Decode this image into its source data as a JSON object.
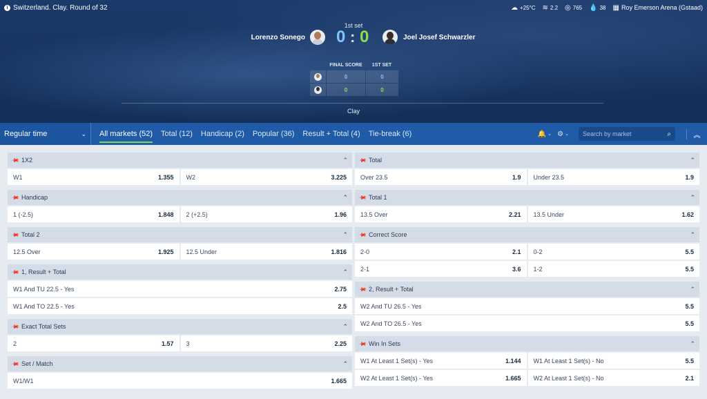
{
  "header": {
    "tournament": "Switzerland. Clay. Round of 32",
    "weather": {
      "temp": "+25°C",
      "wind": "2.2",
      "pressure": "765",
      "humidity": "38"
    },
    "arena": "Roy Emerson Arena (Gstaad)"
  },
  "match": {
    "set_label": "1st set",
    "player1": "Lorenzo Sonego",
    "player2": "Joel Josef Schwarzler",
    "score1": "0",
    "score_sep": ":",
    "score2": "0",
    "table_headers": [
      "FINAL SCORE",
      "1ST SET"
    ],
    "table_rows": [
      {
        "final": "0",
        "set1": "0"
      },
      {
        "final": "0",
        "set1": "0"
      }
    ],
    "surface": "Clay"
  },
  "nav": {
    "period": "Regular time",
    "tabs": [
      "All markets (52)",
      "Total (12)",
      "Handicap (2)",
      "Popular (36)",
      "Result + Total (4)",
      "Tie-break (6)"
    ],
    "search_placeholder": "Search by market"
  },
  "markets_left": [
    {
      "title": "1X2",
      "rows": [
        [
          [
            "W1",
            "1.355"
          ],
          [
            "W2",
            "3.225"
          ]
        ]
      ]
    },
    {
      "title": "Handicap",
      "rows": [
        [
          [
            "1 (-2.5)",
            "1.848"
          ],
          [
            "2 (+2.5)",
            "1.96"
          ]
        ]
      ]
    },
    {
      "title": "Total 2",
      "rows": [
        [
          [
            "12.5 Over",
            "1.925"
          ],
          [
            "12.5 Under",
            "1.816"
          ]
        ]
      ]
    },
    {
      "title": "1, Result + Total",
      "rows": [
        [
          [
            "W1 And TU 22.5 - Yes",
            "2.75"
          ]
        ],
        [
          [
            "W1 And TO 22.5 - Yes",
            "2.5"
          ]
        ]
      ]
    },
    {
      "title": "Exact Total Sets",
      "rows": [
        [
          [
            "2",
            "1.57"
          ],
          [
            "3",
            "2.25"
          ]
        ]
      ]
    },
    {
      "title": "Set / Match",
      "rows": [
        [
          [
            "W1/W1",
            "1.665"
          ]
        ]
      ]
    }
  ],
  "markets_right": [
    {
      "title": "Total",
      "rows": [
        [
          [
            "Over 23.5",
            "1.9"
          ],
          [
            "Under 23.5",
            "1.9"
          ]
        ]
      ]
    },
    {
      "title": "Total 1",
      "rows": [
        [
          [
            "13.5 Over",
            "2.21"
          ],
          [
            "13.5 Under",
            "1.62"
          ]
        ]
      ]
    },
    {
      "title": "Correct Score",
      "rows": [
        [
          [
            "2-0",
            "2.1"
          ],
          [
            "0-2",
            "5.5"
          ]
        ],
        [
          [
            "2-1",
            "3.6"
          ],
          [
            "1-2",
            "5.5"
          ]
        ]
      ]
    },
    {
      "title": "2, Result + Total",
      "rows": [
        [
          [
            "W2 And TU 26.5 - Yes",
            "5.5"
          ]
        ],
        [
          [
            "W2 And TO 26.5 - Yes",
            "5.5"
          ]
        ]
      ]
    },
    {
      "title": "Win In Sets",
      "rows": [
        [
          [
            "W1 At Least 1 Set(s) - Yes",
            "1.144"
          ],
          [
            "W1 At Least 1 Set(s) - No",
            "5.5"
          ]
        ],
        [
          [
            "W2 At Least 1 Set(s) - Yes",
            "1.665"
          ],
          [
            "W2 At Least 1 Set(s) - No",
            "2.1"
          ]
        ]
      ]
    }
  ],
  "colors": {
    "accent": "#1f5ba6",
    "score1": "#7fc4ff",
    "score2": "#86e04a",
    "active_underline": "#7ed957"
  }
}
